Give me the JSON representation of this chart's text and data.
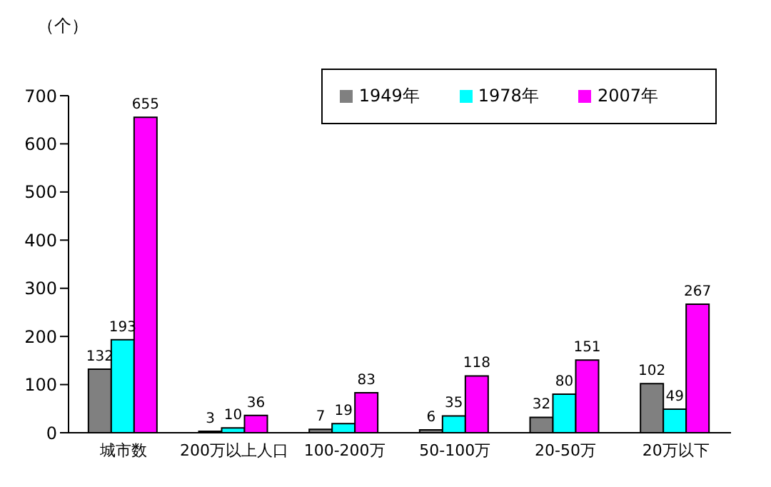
{
  "chart_data": {
    "type": "bar",
    "ylabel": "（个）",
    "categories": [
      "城市数",
      "200万以上人口",
      "100-200万",
      "50-100万",
      "20-50万",
      "20万以下"
    ],
    "series": [
      {
        "name": "1949年",
        "color": "#808080",
        "values": [
          132,
          3,
          7,
          6,
          32,
          102
        ]
      },
      {
        "name": "1978年",
        "color": "#00ffff",
        "values": [
          193,
          10,
          19,
          35,
          80,
          49
        ]
      },
      {
        "name": "2007年",
        "color": "#ff00ff",
        "values": [
          655,
          36,
          83,
          118,
          151,
          267
        ]
      }
    ],
    "ylim": [
      0,
      700
    ],
    "yticks": [
      0,
      100,
      200,
      300,
      400,
      500,
      600,
      700
    ],
    "data_labels": true,
    "grid": false,
    "legend": "top right"
  }
}
